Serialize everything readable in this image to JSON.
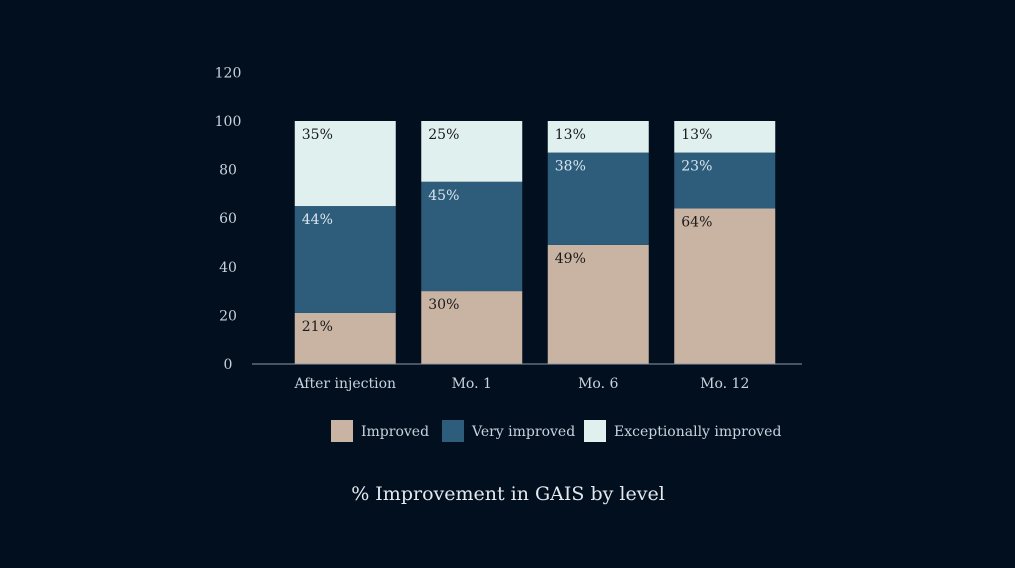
{
  "chart_data": {
    "type": "bar",
    "stacked": true,
    "title": "% Improvement in GAIS by level",
    "categories": [
      "After injection",
      "Mo. 1",
      "Mo. 6",
      "Mo. 12"
    ],
    "series": [
      {
        "name": "Improved",
        "values": [
          21,
          30,
          49,
          64
        ],
        "labels": [
          "21%",
          "30%",
          "49%",
          "64%"
        ],
        "color": "#c9b3a3"
      },
      {
        "name": "Very improved",
        "values": [
          44,
          45,
          38,
          23
        ],
        "labels": [
          "44%",
          "45%",
          "38%",
          "23%"
        ],
        "color": "#2e5d7b"
      },
      {
        "name": "Exceptionally improved",
        "values": [
          35,
          25,
          13,
          13
        ],
        "labels": [
          "35%",
          "25%",
          "13%",
          "13%"
        ],
        "color": "#dff0ef"
      }
    ],
    "ylim": [
      0,
      120
    ],
    "yticks": [
      "0",
      "20",
      "40",
      "60",
      "80",
      "100",
      "120"
    ],
    "grid": false,
    "legend": "bottom",
    "colors": {
      "background": "#020f1f",
      "axis": "#8a9aa8",
      "text": "#c9d3dc",
      "label_dark": "#1b1b1b",
      "label_light": "#d8e4ee"
    }
  }
}
